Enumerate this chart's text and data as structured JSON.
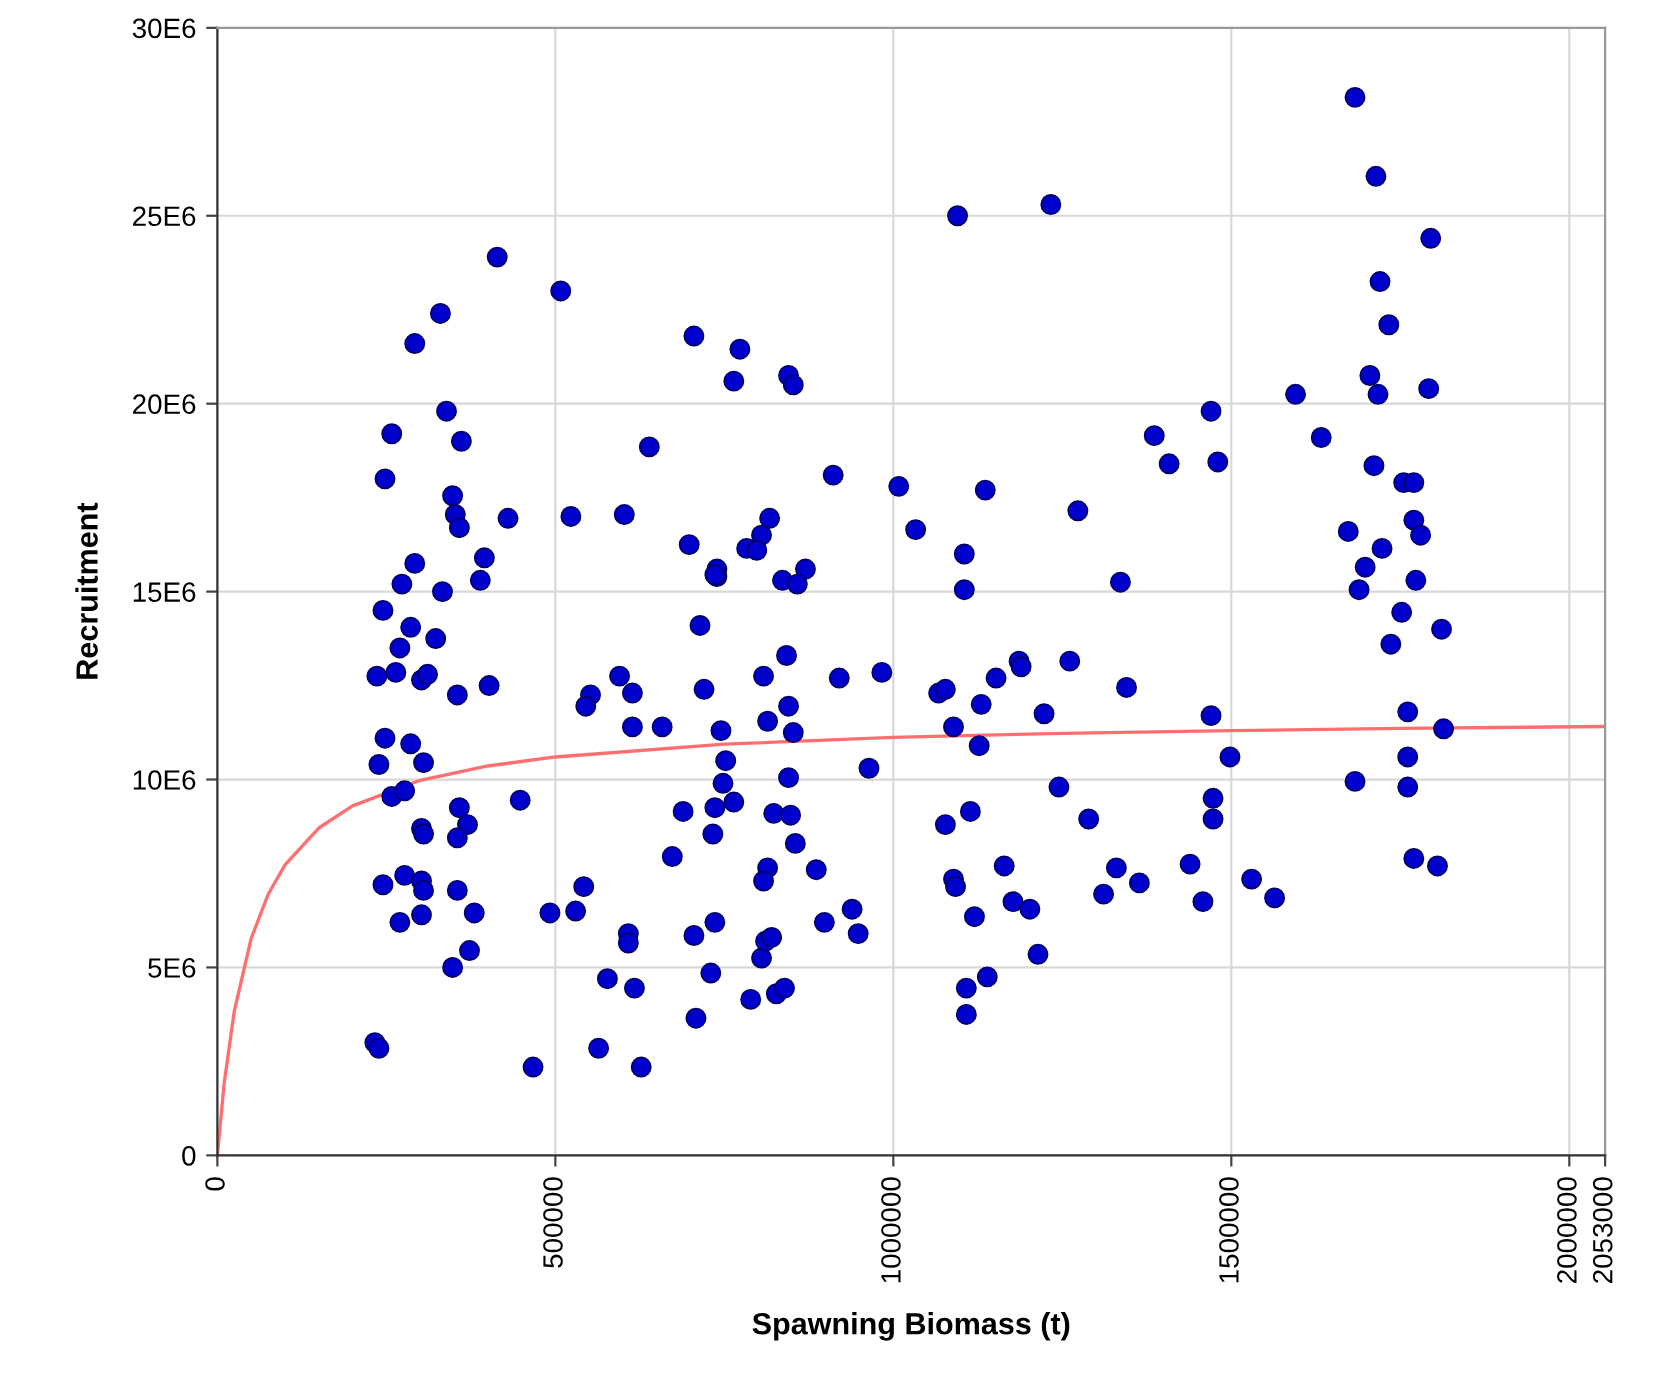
{
  "chart_data": {
    "type": "scatter",
    "xlabel": "Spawning Biomass (t)",
    "ylabel": "Recruitment",
    "xlim": [
      0,
      2053000
    ],
    "xticks": [
      0,
      500000,
      1000000,
      1500000,
      2000000,
      2053000
    ],
    "ylim": [
      0,
      30000000
    ],
    "yticks": [
      0,
      {
        "value": 5000000,
        "label": "5E6"
      },
      {
        "value": 10000000,
        "label": "10E6"
      },
      {
        "value": 15000000,
        "label": "15E6"
      },
      {
        "value": 20000000,
        "label": "20E6"
      },
      {
        "value": 25000000,
        "label": "25E6"
      },
      {
        "value": 30000000,
        "label": "30E6"
      }
    ],
    "grid": true,
    "legend": false,
    "series": [
      {
        "type": "scatter",
        "color": "#0000cc",
        "marker": "circle",
        "x": [
          414000,
          508000,
          330000,
          292000,
          705000,
          773000,
          764000,
          845000,
          852000,
          339000,
          258000,
          361000,
          639000,
          248000,
          911000,
          1008000,
          1033000,
          348000,
          352000,
          358000,
          430000,
          523000,
          602000,
          817000,
          805000,
          783000,
          798000,
          698000,
          739000,
          739000,
          870000,
          836000,
          858000,
          292000,
          395000,
          273000,
          389000,
          333000,
          1095000,
          245000,
          286000,
          323000,
          270000,
          236000,
          264000,
          302000,
          311000,
          355000,
          402000,
          248000,
          286000,
          305000,
          239000,
          258000,
          277000,
          448000,
          358000,
          302000,
          305000,
          370000,
          355000,
          245000,
          277000,
          302000,
          305000,
          355000,
          380000,
          270000,
          302000,
          373000,
          348000,
          233000,
          239000,
          467000,
          564000,
          627000,
          577000,
          617000,
          608000,
          608000,
          542000,
          530000,
          492000,
          708000,
          730000,
          705000,
          736000,
          789000,
          827000,
          839000,
          805000,
          811000,
          820000,
          814000,
          808000,
          886000,
          898000,
          939000,
          948000,
          673000,
          733000,
          689000,
          736000,
          764000,
          748000,
          752000,
          745000,
          720000,
          714000,
          736000,
          595000,
          614000,
          552000,
          545000,
          614000,
          658000,
          808000,
          842000,
          845000,
          852000,
          814000,
          845000,
          823000,
          848000,
          855000,
          920000,
          983000,
          964000,
          1067000,
          1077000,
          1089000,
          1089000,
          1683000,
          1714000,
          1795000,
          1720000,
          1733000,
          1705000,
          1717000,
          1792000,
          1595000,
          1633000,
          1711000,
          1755000,
          1770000,
          1770000,
          1780000,
          1673000,
          1723000,
          1698000,
          1773000,
          1689000,
          1233000,
          1470000,
          1386000,
          1408000,
          1480000,
          1136000,
          1273000,
          1105000,
          1105000,
          1336000,
          1752000,
          1811000,
          1736000,
          1761000,
          1814000,
          1761000,
          1683000,
          1761000,
          1770000,
          1805000,
          1077000,
          1152000,
          1130000,
          1127000,
          1186000,
          1189000,
          1261000,
          1223000,
          1345000,
          1470000,
          1498000,
          1473000,
          1473000,
          1245000,
          1289000,
          1114000,
          1092000,
          1164000,
          1177000,
          1202000,
          1120000,
          1214000,
          1139000,
          1108000,
          1108000,
          1330000,
          1311000,
          1364000,
          1439000,
          1458000,
          1530000,
          1564000
        ],
        "values": [
          23900000,
          23000000,
          22400000,
          21600000,
          21800000,
          21450000,
          20600000,
          20750000,
          20500000,
          19800000,
          19200000,
          19000000,
          18850000,
          18000000,
          18100000,
          17800000,
          16650000,
          17550000,
          17050000,
          16700000,
          16950000,
          17000000,
          17050000,
          16950000,
          16500000,
          16150000,
          16100000,
          16250000,
          15600000,
          15400000,
          15600000,
          15300000,
          15200000,
          15750000,
          15900000,
          15200000,
          15300000,
          15000000,
          25000000,
          14500000,
          14050000,
          13750000,
          13500000,
          12750000,
          12850000,
          12650000,
          12800000,
          12250000,
          12500000,
          11100000,
          10950000,
          10450000,
          10400000,
          9550000,
          9700000,
          9450000,
          9250000,
          8700000,
          8550000,
          8800000,
          8450000,
          7200000,
          7450000,
          7300000,
          7050000,
          7050000,
          6450000,
          6200000,
          6400000,
          5450000,
          5000000,
          3000000,
          2850000,
          2350000,
          2850000,
          2350000,
          4700000,
          4450000,
          5900000,
          5650000,
          7150000,
          6500000,
          6450000,
          3650000,
          4850000,
          5850000,
          6200000,
          4150000,
          4300000,
          4450000,
          5250000,
          5700000,
          5800000,
          7650000,
          7300000,
          7600000,
          6200000,
          6550000,
          5900000,
          7950000,
          8550000,
          9150000,
          9250000,
          9400000,
          9900000,
          10500000,
          11300000,
          12400000,
          14100000,
          15450000,
          12750000,
          12300000,
          12250000,
          11950000,
          11400000,
          11400000,
          12750000,
          13300000,
          11950000,
          11250000,
          11550000,
          10050000,
          9100000,
          9050000,
          8300000,
          12700000,
          12850000,
          10300000,
          12300000,
          8800000,
          7350000,
          11400000,
          28150000,
          26050000,
          24400000,
          23250000,
          22100000,
          20750000,
          20250000,
          20400000,
          20250000,
          19100000,
          18350000,
          17900000,
          17900000,
          16900000,
          16500000,
          16600000,
          16150000,
          15650000,
          15300000,
          15050000,
          25300000,
          19800000,
          19150000,
          18400000,
          18450000,
          17700000,
          17150000,
          16000000,
          15050000,
          15250000,
          14450000,
          14000000,
          13600000,
          11800000,
          11350000,
          10600000,
          9950000,
          9800000,
          7900000,
          7700000,
          12400000,
          12700000,
          12000000,
          10900000,
          13150000,
          13000000,
          13150000,
          11750000,
          12450000,
          11700000,
          10600000,
          9500000,
          8950000,
          9800000,
          8950000,
          9150000,
          7150000,
          7700000,
          6750000,
          6550000,
          6350000,
          5350000,
          4750000,
          4450000,
          3750000,
          7650000,
          6950000,
          7250000,
          7750000,
          6750000,
          7350000,
          6850000
        ]
      },
      {
        "type": "line",
        "color": "#ff6f6f",
        "marker": "none",
        "line_style": "solid",
        "x": [
          0,
          10000,
          25000,
          50000,
          75000,
          100000,
          150000,
          200000,
          300000,
          400000,
          500000,
          750000,
          1000000,
          1250000,
          1500000,
          1750000,
          2053000
        ],
        "values": [
          0,
          1910000,
          3830000,
          5770000,
          6940000,
          7730000,
          8710000,
          9300000,
          9980000,
          10360000,
          10600000,
          10940000,
          11120000,
          11230000,
          11300000,
          11360000,
          11410000
        ]
      }
    ]
  }
}
